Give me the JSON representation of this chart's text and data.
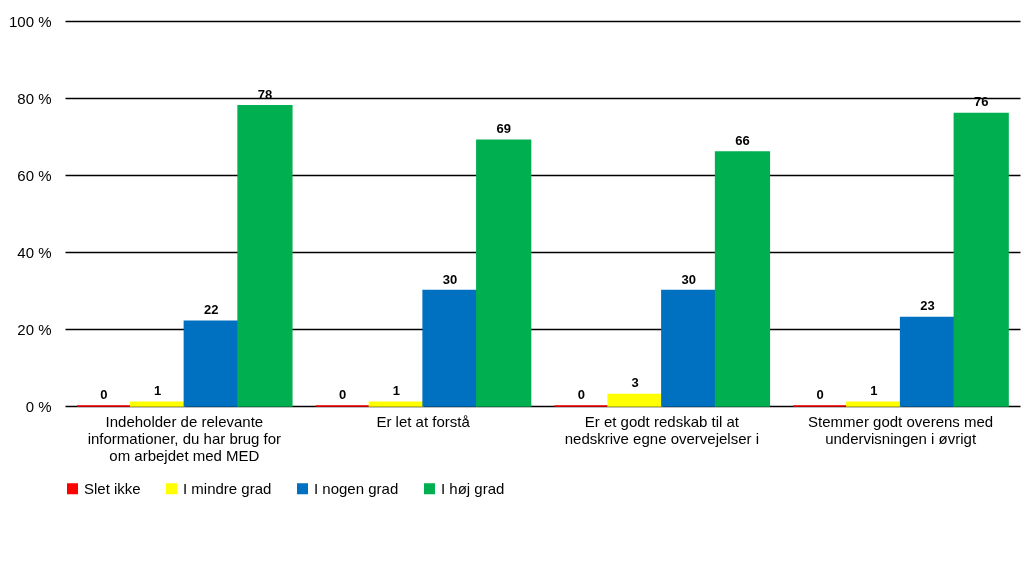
{
  "chart_data": {
    "type": "bar",
    "categories": [
      "Indeholder de relevante informationer, du har brug for om arbejdet med MED",
      "Er let at forstå",
      "Er et godt redskab til at nedskrive egne overvejelser i",
      "Stemmer godt overens med undervisningen i øvrigt"
    ],
    "series": [
      {
        "name": "Slet ikke",
        "color": "#ff0000",
        "values": [
          0,
          0,
          0,
          0
        ]
      },
      {
        "name": "I mindre grad",
        "color": "#ffff00",
        "values": [
          1,
          1,
          3,
          1
        ]
      },
      {
        "name": "I nogen grad",
        "color": "#0070c0",
        "values": [
          22,
          30,
          30,
          23
        ]
      },
      {
        "name": "I høj grad",
        "color": "#00b050",
        "values": [
          78,
          69,
          66,
          76
        ]
      }
    ],
    "ylim": [
      0,
      100
    ],
    "yticks": [
      {
        "value": 0,
        "label": "0 %"
      },
      {
        "value": 20,
        "label": "20 %"
      },
      {
        "value": 40,
        "label": "40 %"
      },
      {
        "value": 60,
        "label": "60 %"
      },
      {
        "value": 80,
        "label": "80 %"
      },
      {
        "value": 100,
        "label": "100 %"
      }
    ],
    "grid": "y",
    "legend": "bottom",
    "data_labels": true
  }
}
